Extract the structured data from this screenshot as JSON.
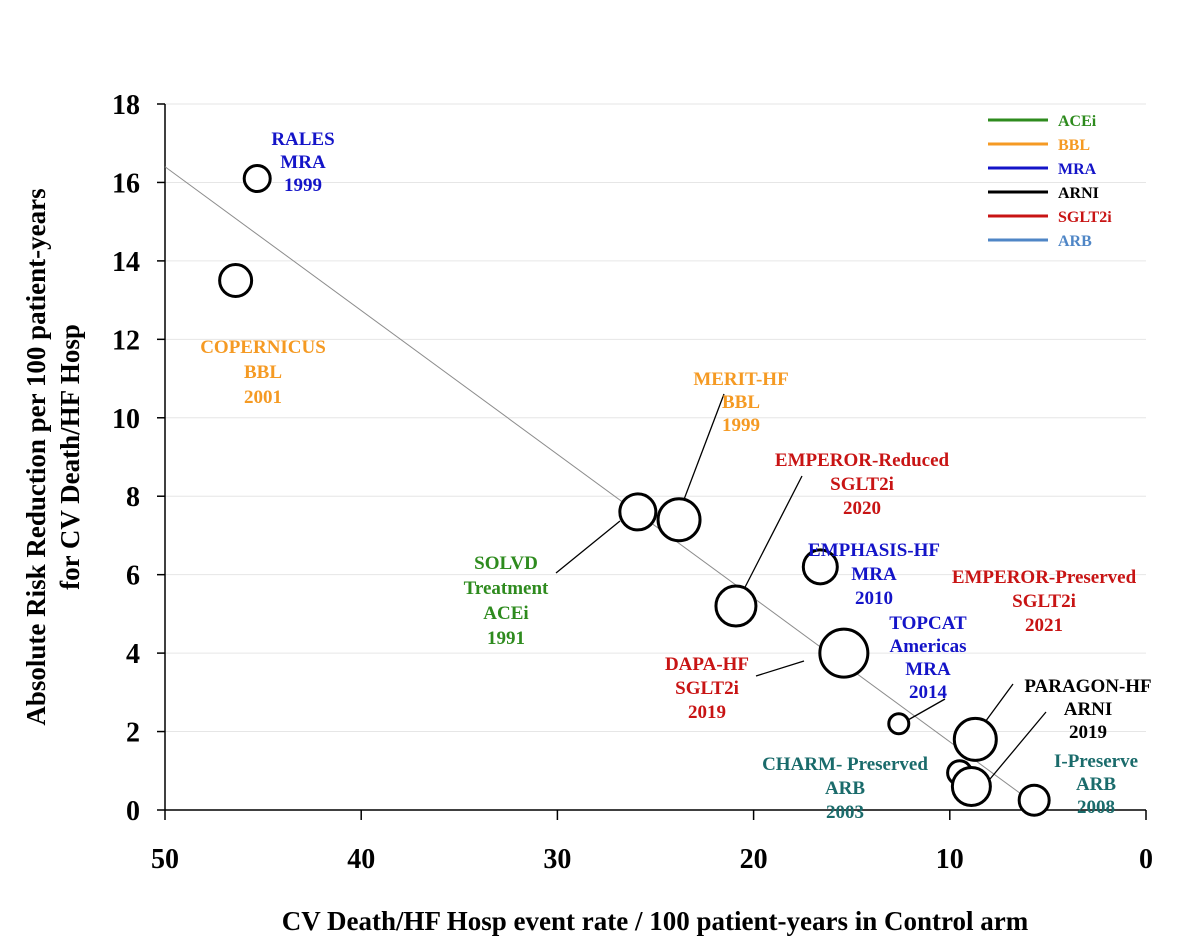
{
  "chart_data": {
    "type": "scatter",
    "title": "",
    "xlabel": "CV Death/HF Hosp event rate / 100 patient-years in Control arm",
    "ylabel": "Absolute Risk Reduction per 100 patient-years for CV Death/HF Hosp",
    "x_reversed": true,
    "xlim": [
      50,
      0
    ],
    "ylim": [
      0,
      18
    ],
    "x_ticks": [
      "50",
      "40",
      "30",
      "20",
      "10",
      "0"
    ],
    "y_ticks": [
      "0",
      "2",
      "4",
      "6",
      "8",
      "10",
      "12",
      "14",
      "16",
      "18"
    ],
    "grid": "horizontal",
    "legend_position": "top-right",
    "legend": [
      {
        "label": "ACEi",
        "color": "#2e8b1e"
      },
      {
        "label": "BBL",
        "color": "#f59a23"
      },
      {
        "label": "MRA",
        "color": "#1414c8"
      },
      {
        "label": "ARNI",
        "color": "#000000"
      },
      {
        "label": "SGLT2i",
        "color": "#c81414"
      },
      {
        "label": "ARB",
        "color": "#4f86c6"
      }
    ],
    "trendline": {
      "x": [
        50,
        5.8
      ],
      "y": [
        16.4,
        0.2
      ]
    },
    "points": [
      {
        "x": 45.3,
        "y": 16.1,
        "size": 13,
        "class": "MRA",
        "color": "#1414c8",
        "label": [
          "RALES",
          "MRA",
          "1999"
        ],
        "label_color": "#1414c8"
      },
      {
        "x": 46.4,
        "y": 13.5,
        "size": 16,
        "class": "BBL",
        "color": "#f59a23",
        "label": [
          "COPERNICUS",
          "BBL",
          "2001"
        ],
        "label_color": "#f59a23"
      },
      {
        "x": 25.9,
        "y": 7.6,
        "size": 18,
        "class": "ACEi",
        "color": "#2e8b1e",
        "label": [
          "SOLVD",
          "Treatment",
          "ACEi",
          "1991"
        ],
        "label_color": "#2e8b1e"
      },
      {
        "x": 23.8,
        "y": 7.4,
        "size": 21,
        "class": "BBL",
        "color": "#f59a23",
        "label": [
          "MERIT-HF",
          "BBL",
          "1999"
        ],
        "label_color": "#f59a23"
      },
      {
        "x": 20.9,
        "y": 5.2,
        "size": 20,
        "class": "SGLT2i",
        "color": "#c81414",
        "label": [
          "EMPEROR-Reduced",
          "SGLT2i",
          "2020"
        ],
        "label_color": "#c81414"
      },
      {
        "x": 16.6,
        "y": 6.2,
        "size": 17,
        "class": "MRA",
        "color": "#1414c8",
        "label": [
          "EMPHASIS-HF",
          "MRA",
          "2010"
        ],
        "label_color": "#1414c8"
      },
      {
        "x": 15.4,
        "y": 4.0,
        "size": 24,
        "class": "SGLT2i",
        "color": "#c81414",
        "label": [
          "DAPA-HF",
          "SGLT2i",
          "2019"
        ],
        "label_color": "#c81414"
      },
      {
        "x": 12.6,
        "y": 2.2,
        "size": 10,
        "class": "MRA",
        "color": "#1414c8",
        "label": [
          "TOPCAT",
          "Americas",
          "MRA",
          "2014"
        ],
        "label_color": "#1414c8"
      },
      {
        "x": 9.5,
        "y": 0.95,
        "size": 12,
        "class": "ARB",
        "color": "#4f86c6",
        "label": [
          "CHARM- Preserved",
          "ARB",
          "2003"
        ],
        "label_color": "#1a6b6b"
      },
      {
        "x": 8.7,
        "y": 1.8,
        "size": 21,
        "class": "ARNI",
        "color": "#000000",
        "label": [
          "PARAGON-HF",
          "ARNI",
          "2019"
        ],
        "label_color": "#000000"
      },
      {
        "x": 8.9,
        "y": 0.6,
        "size": 19,
        "class": "SGLT2i",
        "color": "#c81414",
        "label": [
          "EMPEROR-Preserved",
          "SGLT2i",
          "2021"
        ],
        "label_color": "#c81414"
      },
      {
        "x": 5.7,
        "y": 0.25,
        "size": 15,
        "class": "ARB",
        "color": "#4f86c6",
        "label": [
          "I-Preserve",
          "ARB",
          "2008"
        ],
        "label_color": "#1a6b6b"
      }
    ]
  }
}
